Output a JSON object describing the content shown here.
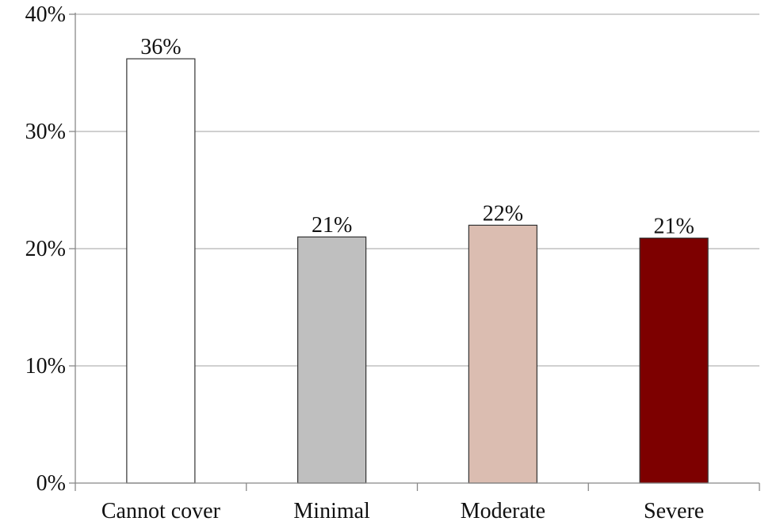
{
  "chart_data": {
    "type": "bar",
    "categories": [
      "Cannot cover",
      "Minimal",
      "Moderate",
      "Severe"
    ],
    "values": [
      36.2,
      21.0,
      22.0,
      20.9
    ],
    "data_labels": [
      "36%",
      "21%",
      "22%",
      "21%"
    ],
    "bar_colors": [
      "#ffffff",
      "#bfbfbf",
      "#dbbdb1",
      "#7d0000"
    ],
    "bar_outline_color": "#333333",
    "gridline_color": "#b3b3b3",
    "ylim": [
      0,
      40
    ],
    "yticks": [
      0,
      10,
      20,
      30,
      40
    ],
    "ytick_labels": [
      "0%",
      "10%",
      "20%",
      "30%",
      "40%"
    ],
    "grid": true,
    "legend": "none",
    "title": "",
    "xlabel": "",
    "ylabel": ""
  }
}
